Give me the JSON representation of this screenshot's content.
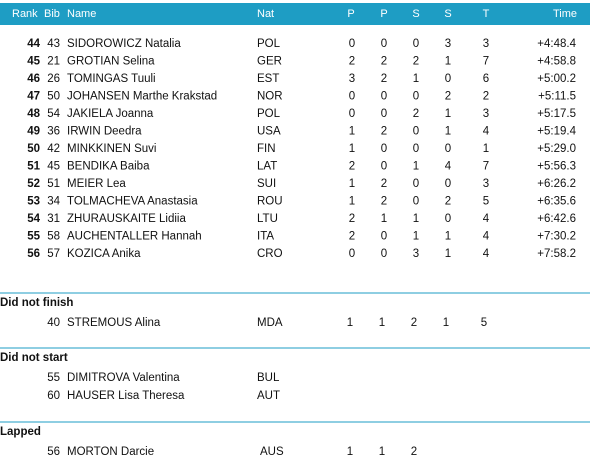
{
  "header": [
    "Rank",
    "Bib",
    "Name",
    "Nat",
    "P",
    "P",
    "S",
    "S",
    "T",
    "Time"
  ],
  "rows": [
    [
      44,
      43,
      "SIDOROWICZ Natalia",
      "POL",
      0,
      0,
      0,
      3,
      3,
      "+4:48.4"
    ],
    [
      45,
      21,
      "GROTIAN Selina",
      "GER",
      2,
      2,
      2,
      1,
      7,
      "+4:58.8"
    ],
    [
      46,
      26,
      "TOMINGAS Tuuli",
      "EST",
      3,
      2,
      1,
      0,
      6,
      "+5:00.2"
    ],
    [
      47,
      50,
      "JOHANSEN Marthe Krakstad",
      "NOR",
      0,
      0,
      0,
      2,
      2,
      "+5:11.5"
    ],
    [
      48,
      54,
      "JAKIELA Joanna",
      "POL",
      0,
      0,
      2,
      1,
      3,
      "+5:17.5"
    ],
    [
      49,
      36,
      "IRWIN Deedra",
      "USA",
      1,
      2,
      0,
      1,
      4,
      "+5:19.4"
    ],
    [
      50,
      42,
      "MINKKINEN Suvi",
      "FIN",
      1,
      0,
      0,
      0,
      1,
      "+5:29.0"
    ],
    [
      51,
      45,
      "BENDIKA Baiba",
      "LAT",
      2,
      0,
      1,
      4,
      7,
      "+5:56.3"
    ],
    [
      52,
      51,
      "MEIER Lea",
      "SUI",
      1,
      2,
      0,
      0,
      3,
      "+6:26.2"
    ],
    [
      53,
      34,
      "TOLMACHEVA Anastasia",
      "ROU",
      1,
      2,
      0,
      2,
      5,
      "+6:35.6"
    ],
    [
      54,
      31,
      "ZHURAUSKAITE Lidiia",
      "LTU",
      2,
      1,
      1,
      0,
      4,
      "+6:42.6"
    ],
    [
      55,
      58,
      "AUCHENTALLER Hannah",
      "ITA",
      2,
      0,
      1,
      1,
      4,
      "+7:30.2"
    ],
    [
      56,
      57,
      "KOZICA Anika",
      "CRO",
      0,
      0,
      3,
      1,
      4,
      "+7:58.2"
    ]
  ],
  "sections": [
    {
      "title": "Did not finish",
      "rows": [
        [
          40,
          "STREMOUS Alina",
          "MDA",
          1,
          1,
          2,
          1,
          5
        ]
      ]
    },
    {
      "title": "Did not start",
      "rows": [
        [
          55,
          "DIMITROVA Valentina",
          "BUL"
        ],
        [
          60,
          "HAUSER Lisa Theresa",
          "AUT"
        ]
      ]
    },
    {
      "title": "Lapped",
      "rows": [
        [
          56,
          "MORTON Darcie",
          "AUS",
          1,
          1,
          2
        ]
      ]
    }
  ]
}
